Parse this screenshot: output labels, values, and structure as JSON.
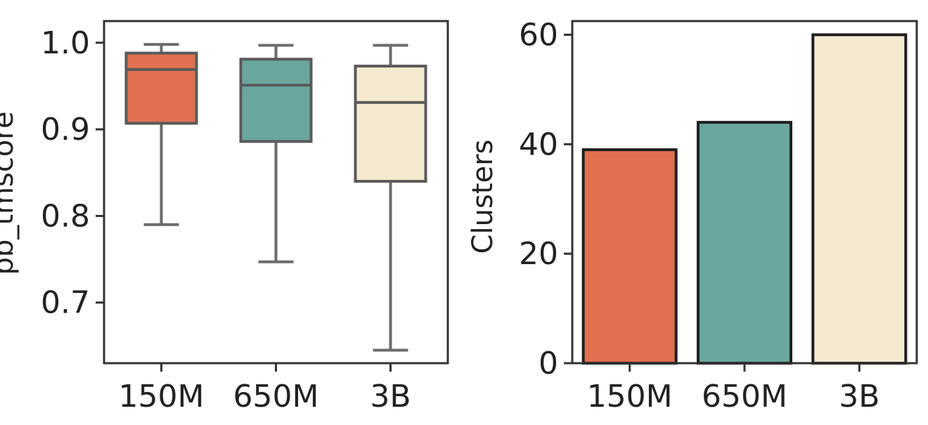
{
  "chart_data": [
    {
      "type": "box",
      "ylabel": "pb_tmscore",
      "xlabel": "",
      "categories": [
        "150M",
        "650M",
        "3B"
      ],
      "ylim": [
        0.63,
        1.025
      ],
      "yticks": [
        0.7,
        0.8,
        0.9,
        1.0
      ],
      "ytick_labels": [
        "0.7",
        "0.8",
        "0.9",
        "1.0"
      ],
      "boxes": [
        {
          "category": "150M",
          "whisker_low": 0.79,
          "q1": 0.907,
          "median": 0.969,
          "q3": 0.988,
          "whisker_high": 0.998,
          "color": "#e07050"
        },
        {
          "category": "650M",
          "whisker_low": 0.747,
          "q1": 0.886,
          "median": 0.951,
          "q3": 0.981,
          "whisker_high": 0.997,
          "color": "#69a69e"
        },
        {
          "category": "3B",
          "whisker_low": 0.645,
          "q1": 0.84,
          "median": 0.931,
          "q3": 0.973,
          "whisker_high": 0.997,
          "color": "#f5ead0"
        }
      ]
    },
    {
      "type": "bar",
      "ylabel": "Clusters",
      "xlabel": "",
      "categories": [
        "150M",
        "650M",
        "3B"
      ],
      "values": [
        39,
        44,
        60
      ],
      "colors": [
        "#e07050",
        "#69a69e",
        "#f5ead0"
      ],
      "ylim": [
        0,
        62.5
      ],
      "yticks": [
        0,
        20,
        40,
        60
      ],
      "ytick_labels": [
        "0",
        "20",
        "40",
        "60"
      ]
    }
  ]
}
